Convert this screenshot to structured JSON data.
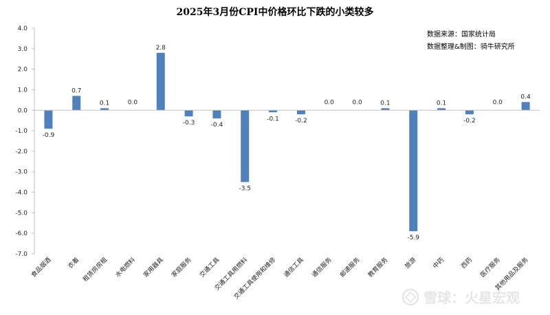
{
  "chart_data": {
    "type": "bar",
    "title": "2025年3月份CPI中价格环比下跌的小类较多",
    "categories": [
      "食品烟酒",
      "衣着",
      "租赁房房租",
      "水电燃料",
      "家用器具",
      "家庭服务",
      "交通工具",
      "交通工具用燃料",
      "交通工具使用和维修",
      "通信工具",
      "通信服务",
      "邮递服务",
      "教育服务",
      "旅游",
      "中药",
      "西药",
      "医疗服务",
      "其他用品及服务"
    ],
    "values": [
      -0.9,
      0.7,
      0.1,
      0.0,
      2.8,
      -0.3,
      -0.4,
      -3.5,
      -0.1,
      -0.2,
      0.0,
      0.0,
      0.1,
      -5.9,
      0.1,
      -0.2,
      0.0,
      0.4
    ],
    "data_labels": [
      "-0.9",
      "0.7",
      "0.1",
      "0.0",
      "2.8",
      "-0.3",
      "-0.4",
      "-3.5",
      "-0.1",
      "-0.2",
      "0.0",
      "0.0",
      "0.1",
      "-5.9",
      "0.1",
      "-0.2",
      "0.0",
      "0.4"
    ],
    "ylim": [
      -7.0,
      4.0
    ],
    "yticks": [
      "4.0",
      "3.0",
      "2.0",
      "1.0",
      "0.0",
      "-1.0",
      "-2.0",
      "-3.0",
      "-4.0",
      "-5.0",
      "-6.0",
      "-7.0"
    ],
    "xlabel": "",
    "ylabel": "",
    "grid": false,
    "bar_color": "#4f81bd",
    "axis_color": "#bfbfbf"
  },
  "source_lines": [
    "数据来源：国家统计局",
    "数据整理&制图：骑牛研究所"
  ],
  "watermark": "雪球：火星宏观"
}
